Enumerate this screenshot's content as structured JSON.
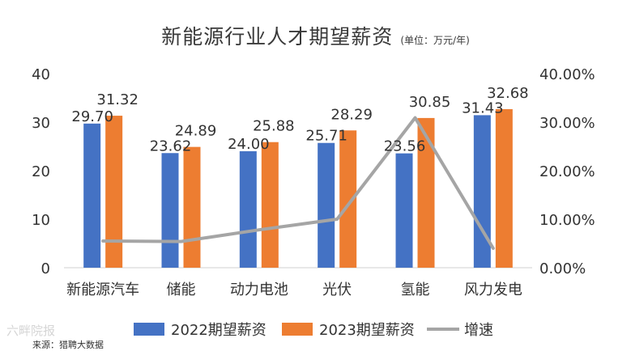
{
  "chart_data": {
    "type": "bar",
    "title": "新能源行业人才期望薪资",
    "unit_note": "(单位：万元/年)",
    "categories": [
      "新能源汽车",
      "储能",
      "动力电池",
      "光伏",
      "氢能",
      "风力发电"
    ],
    "series": [
      {
        "name": "2022期望薪资",
        "type": "bar",
        "axis": "left",
        "color": "#4472C4",
        "values": [
          29.7,
          23.62,
          24.0,
          25.71,
          23.56,
          31.43
        ],
        "labels": [
          "29.70",
          "23.62",
          "24.00",
          "25.71",
          "23.56",
          "31.43"
        ]
      },
      {
        "name": "2023期望薪资",
        "type": "bar",
        "axis": "left",
        "color": "#ED7D31",
        "values": [
          31.32,
          24.89,
          25.88,
          28.29,
          30.85,
          32.68
        ],
        "labels": [
          "31.32",
          "24.89",
          "25.88",
          "28.29",
          "30.85",
          "32.68"
        ]
      },
      {
        "name": "增速",
        "type": "line",
        "axis": "right",
        "color": "#A5A5A5",
        "values": [
          5.5,
          5.4,
          7.8,
          10.0,
          30.9,
          4.0
        ]
      }
    ],
    "y_left": {
      "min": 0,
      "max": 40,
      "ticks": [
        "0",
        "10",
        "20",
        "30",
        "40"
      ]
    },
    "y_right": {
      "min": 0,
      "max": 40,
      "ticks": [
        "0.00%",
        "10.00%",
        "20.00%",
        "30.00%",
        "40.00%"
      ]
    },
    "legend_position": "bottom",
    "grid": false
  },
  "source": "来源：猎聘大数据",
  "watermark": "六畔院报"
}
